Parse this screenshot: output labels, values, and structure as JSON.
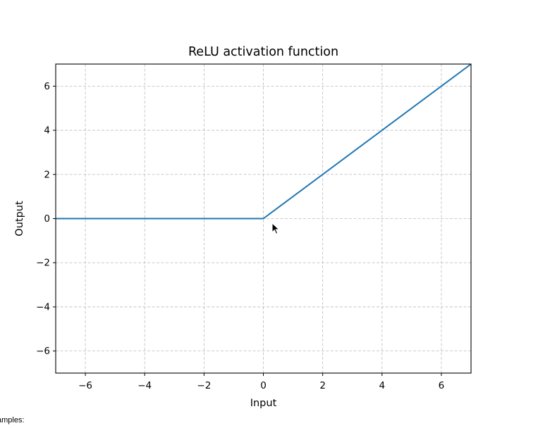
{
  "chart_data": {
    "type": "line",
    "title": "ReLU activation function",
    "xlabel": "Input",
    "ylabel": "Output",
    "xlim": [
      -7,
      7
    ],
    "ylim": [
      -7,
      7
    ],
    "xticks": [
      -6,
      -4,
      -2,
      0,
      2,
      4,
      6
    ],
    "yticks": [
      -6,
      -4,
      -2,
      0,
      2,
      4,
      6
    ],
    "xtick_labels": [
      "−6",
      "−4",
      "−2",
      "0",
      "2",
      "4",
      "6"
    ],
    "ytick_labels": [
      "−6",
      "−4",
      "−2",
      "0",
      "2",
      "4",
      "6"
    ],
    "grid": true,
    "series": [
      {
        "x": [
          -7,
          0,
          7
        ],
        "y": [
          0,
          0,
          7
        ],
        "color": "#1f77b4"
      }
    ]
  },
  "footer": {
    "text": "amples:"
  }
}
